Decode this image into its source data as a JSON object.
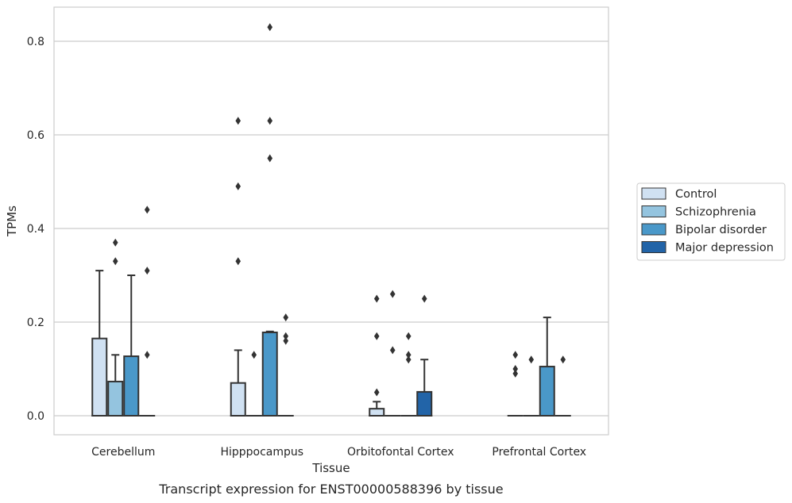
{
  "caption": "Transcript expression for ENST00000588396 by tissue",
  "chart_data": {
    "type": "box",
    "title": "",
    "xlabel": "Tissue",
    "ylabel": "TPMs",
    "ylim": [
      -0.04,
      0.875
    ],
    "yticks": [
      "0.0",
      "0.2",
      "0.4",
      "0.6",
      "0.8"
    ],
    "ytick_values": [
      0,
      0.2,
      0.4,
      0.6,
      0.8
    ],
    "grid": true,
    "legend_position": "right",
    "categories": [
      "Cerebellum",
      "Hipppocampus",
      "Orbitofontal Cortex",
      "Prefrontal Cortex"
    ],
    "series": [
      {
        "name": "Control",
        "color": "#d0e1f2",
        "boxes": [
          {
            "q1": 0,
            "median": 0,
            "q3": 0.165,
            "whisker_low": 0,
            "whisker_high": 0.31,
            "outliers": []
          },
          {
            "q1": 0,
            "median": 0,
            "q3": 0.07,
            "whisker_low": 0,
            "whisker_high": 0.14,
            "outliers": [
              0.33,
              0.49,
              0.63
            ]
          },
          {
            "q1": 0,
            "median": 0,
            "q3": 0.015,
            "whisker_low": 0,
            "whisker_high": 0.03,
            "outliers": [
              0.05,
              0.17,
              0.25
            ]
          },
          {
            "q1": 0,
            "median": 0,
            "q3": 0,
            "whisker_low": 0,
            "whisker_high": 0,
            "outliers": [
              0.09,
              0.1,
              0.13
            ]
          }
        ]
      },
      {
        "name": "Schizophrenia",
        "color": "#94c4df",
        "boxes": [
          {
            "q1": 0,
            "median": 0,
            "q3": 0.073,
            "whisker_low": 0,
            "whisker_high": 0.13,
            "outliers": [
              0.33,
              0.37
            ]
          },
          {
            "q1": 0,
            "median": 0,
            "q3": 0,
            "whisker_low": 0,
            "whisker_high": 0,
            "outliers": [
              0.13
            ]
          },
          {
            "q1": 0,
            "median": 0,
            "q3": 0,
            "whisker_low": 0,
            "whisker_high": 0,
            "outliers": [
              0.14,
              0.26
            ]
          },
          {
            "q1": 0,
            "median": 0,
            "q3": 0,
            "whisker_low": 0,
            "whisker_high": 0,
            "outliers": [
              0.12
            ]
          }
        ]
      },
      {
        "name": "Bipolar disorder",
        "color": "#4a98c9",
        "boxes": [
          {
            "q1": 0,
            "median": 0,
            "q3": 0.127,
            "whisker_low": 0,
            "whisker_high": 0.3,
            "outliers": []
          },
          {
            "q1": 0,
            "median": 0,
            "q3": 0.178,
            "whisker_low": 0,
            "whisker_high": 0.18,
            "outliers": [
              0.55,
              0.63,
              0.83
            ]
          },
          {
            "q1": 0,
            "median": 0,
            "q3": 0,
            "whisker_low": 0,
            "whisker_high": 0,
            "outliers": [
              0.12,
              0.13,
              0.17
            ]
          },
          {
            "q1": 0,
            "median": 0,
            "q3": 0.105,
            "whisker_low": 0,
            "whisker_high": 0.21,
            "outliers": []
          }
        ]
      },
      {
        "name": "Major depression",
        "color": "#2264a8",
        "boxes": [
          {
            "q1": 0,
            "median": 0,
            "q3": 0,
            "whisker_low": 0,
            "whisker_high": 0,
            "outliers": [
              0.13,
              0.31,
              0.44
            ]
          },
          {
            "q1": 0,
            "median": 0,
            "q3": 0,
            "whisker_low": 0,
            "whisker_high": 0,
            "outliers": [
              0.16,
              0.17,
              0.21
            ]
          },
          {
            "q1": 0,
            "median": 0,
            "q3": 0.051,
            "whisker_low": 0,
            "whisker_high": 0.12,
            "outliers": [
              0.25
            ]
          },
          {
            "q1": 0,
            "median": 0,
            "q3": 0,
            "whisker_low": 0,
            "whisker_high": 0,
            "outliers": [
              0.12
            ]
          }
        ]
      }
    ]
  }
}
